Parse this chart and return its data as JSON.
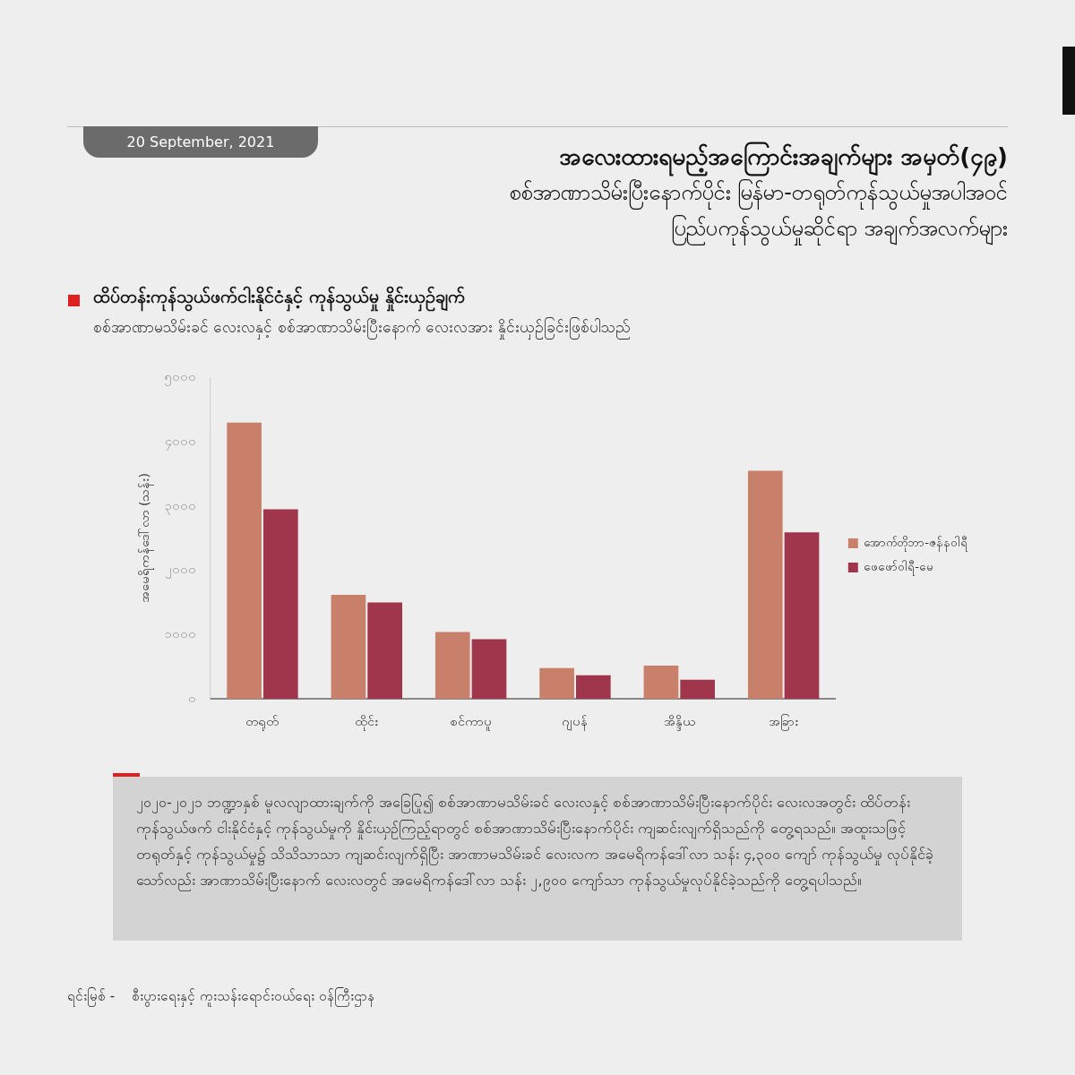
{
  "chart_data": {
    "type": "bar",
    "title": "ထိပ်တန်းကုန်သွယ်ဖက်ငါးနိုင်ငံနှင့် ကုန်သွယ်မှု နှိုင်းယှဉ်ချက်",
    "subtitle": "စစ်အာဏာမသိမ်းခင် လေးလနှင့် စစ်အာဏာသိမ်းပြီးနောက် လေးလအား နှိုင်းယှဉ်ခြင်းဖြစ်ပါသည်",
    "ylabel": "အမေရိကန်ဒေါ်လာ (သန်း)",
    "categories": [
      "တရုတ်",
      "ထိုင်း",
      "စင်ကာပူ",
      "ဂျပန်",
      "အိန္ဒိယ",
      "အခြား"
    ],
    "series": [
      {
        "name": "အောက်တိုဘာ-ဇန်နဝါရီ",
        "color": "#c8806a",
        "values": [
          4300,
          1620,
          1040,
          480,
          520,
          3550
        ]
      },
      {
        "name": "ဖေဖော်ဝါရီ-မေ",
        "color": "#a0364b",
        "values": [
          2950,
          1500,
          930,
          370,
          300,
          2590
        ]
      }
    ],
    "ylim": [
      0,
      5000
    ],
    "yticks": [
      {
        "value": 0,
        "label": "၀"
      },
      {
        "value": 1000,
        "label": "၁၀၀၀"
      },
      {
        "value": 2000,
        "label": "၂၀၀၀"
      },
      {
        "value": 3000,
        "label": "၃၀၀၀"
      },
      {
        "value": 4000,
        "label": "၄၀၀၀"
      },
      {
        "value": 5000,
        "label": "၅၀၀၀"
      }
    ],
    "legend": "right",
    "annotations": [
      "20 September, 2021",
      "အလေးထားရမည့်အကြောင်းအချက်များ အမှတ်(၄၉)",
      "စစ်အာဏာသိမ်းပြီးနောက်ပိုင်း မြန်မာ-တရုတ်ကုန်သွယ်မှုအပါအဝင်",
      "ပြည်ပကုန်သွယ်မှုဆိုင်ရာ အချက်အလက်များ",
      "၂၀၂၀-၂၀၂၁ ဘဏ္ဍာနှစ် မူလလျာထားချက်ကို အခြေပြု၍ စစ်အာဏာမသိမ်းခင် လေးလနှင့် စစ်အာဏာသိမ်းပြီးနောက်ပိုင်း လေးလအတွင်း ထိပ်တန်းကုန်သွယ်ဖက် ငါးနိုင်ငံနှင့် ကုန်သွယ်မှုကို နှိုင်းယှဉ်ကြည့်ရာတွင် စစ်အာဏာသိမ်းပြီးနောက်ပိုင်း ကျဆင်းလျက်ရှိသည်ကို တွေ့ရသည်။ အထူးသဖြင့် တရုတ်နှင့် ကုန်သွယ်မှု၌ သိသိသာသာ ကျဆင်းလျက်ရှိပြီး အာဏာမသိမ်းခင် လေးလက အမေရိကန်ဒေါ်လာ သန်း ၄,၃၀၀ ကျော် ကုန်သွယ်မှု လုပ်နိုင်ခဲ့သော်လည်း အာဏာသိမ်းပြီးနောက် လေးလတွင် အမေရိကန်ဒေါ်လာ သန်း ၂,၉၀၀ ကျော်သာ ကုန်သွယ်မှုလုပ်နိုင်ခဲ့သည်ကို တွေ့ရပါသည်။",
      "ရင်းမြစ် -    စီးပွားရေးနှင့် ကူးသန်းရောင်းဝယ်ရေး ဝန်ကြီးဌာန"
    ]
  }
}
